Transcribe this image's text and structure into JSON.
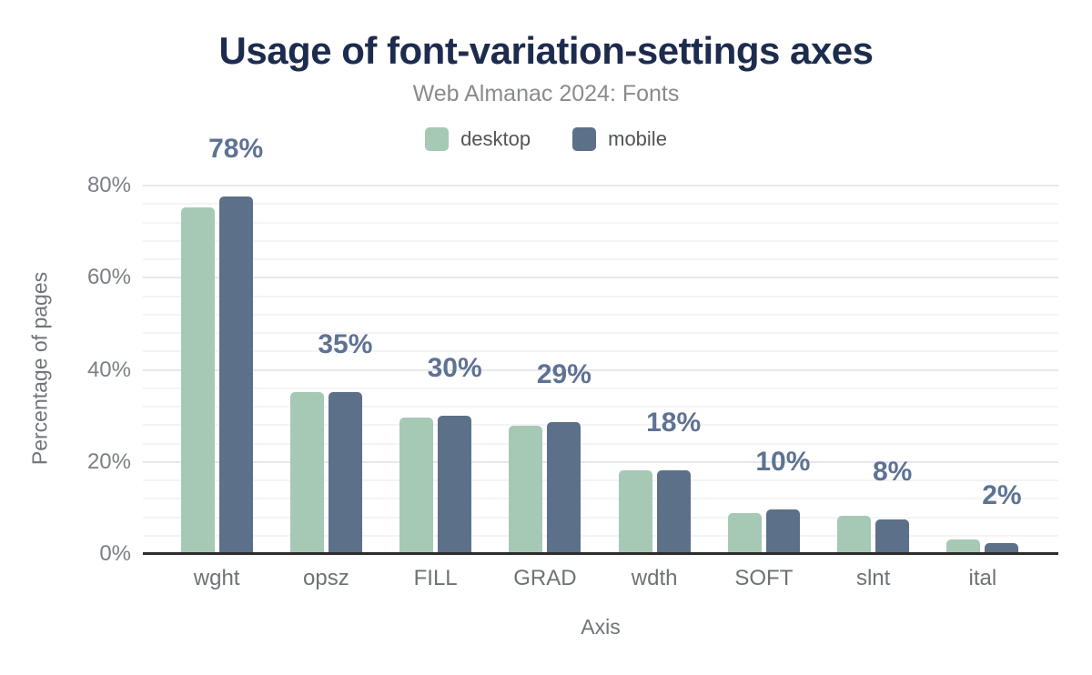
{
  "title": "Usage of font-variation-settings axes",
  "subtitle": "Web Almanac 2024: Fonts",
  "chart_data": {
    "type": "bar",
    "title": "Usage of font-variation-settings axes",
    "subtitle": "Web Almanac 2024: Fonts",
    "categories": [
      "wght",
      "opsz",
      "FILL",
      "GRAD",
      "wdth",
      "SOFT",
      "slnt",
      "ital"
    ],
    "series": [
      {
        "name": "desktop",
        "color": "#a6c9b5",
        "values": [
          75.2,
          35.1,
          29.7,
          27.9,
          18.1,
          8.8,
          8.3,
          3.1
        ]
      },
      {
        "name": "mobile",
        "color": "#5d7089",
        "values": [
          77.7,
          35.2,
          30.1,
          28.6,
          18.1,
          9.6,
          7.6,
          2.3
        ]
      }
    ],
    "data_labels": [
      "78%",
      "35%",
      "30%",
      "29%",
      "18%",
      "10%",
      "8%",
      "2%"
    ],
    "data_label_color": "#5e7294",
    "xlabel": "Axis",
    "ylabel": "Percentage of pages",
    "ylim": [
      0,
      80
    ],
    "ytick_values": [
      0,
      20,
      40,
      60,
      80
    ],
    "ytick_labels": [
      "0%",
      "20%",
      "40%",
      "60%",
      "80%"
    ],
    "grid": {
      "minor_step": 4,
      "major_step": 20,
      "on": true
    },
    "legend_position": "top"
  }
}
